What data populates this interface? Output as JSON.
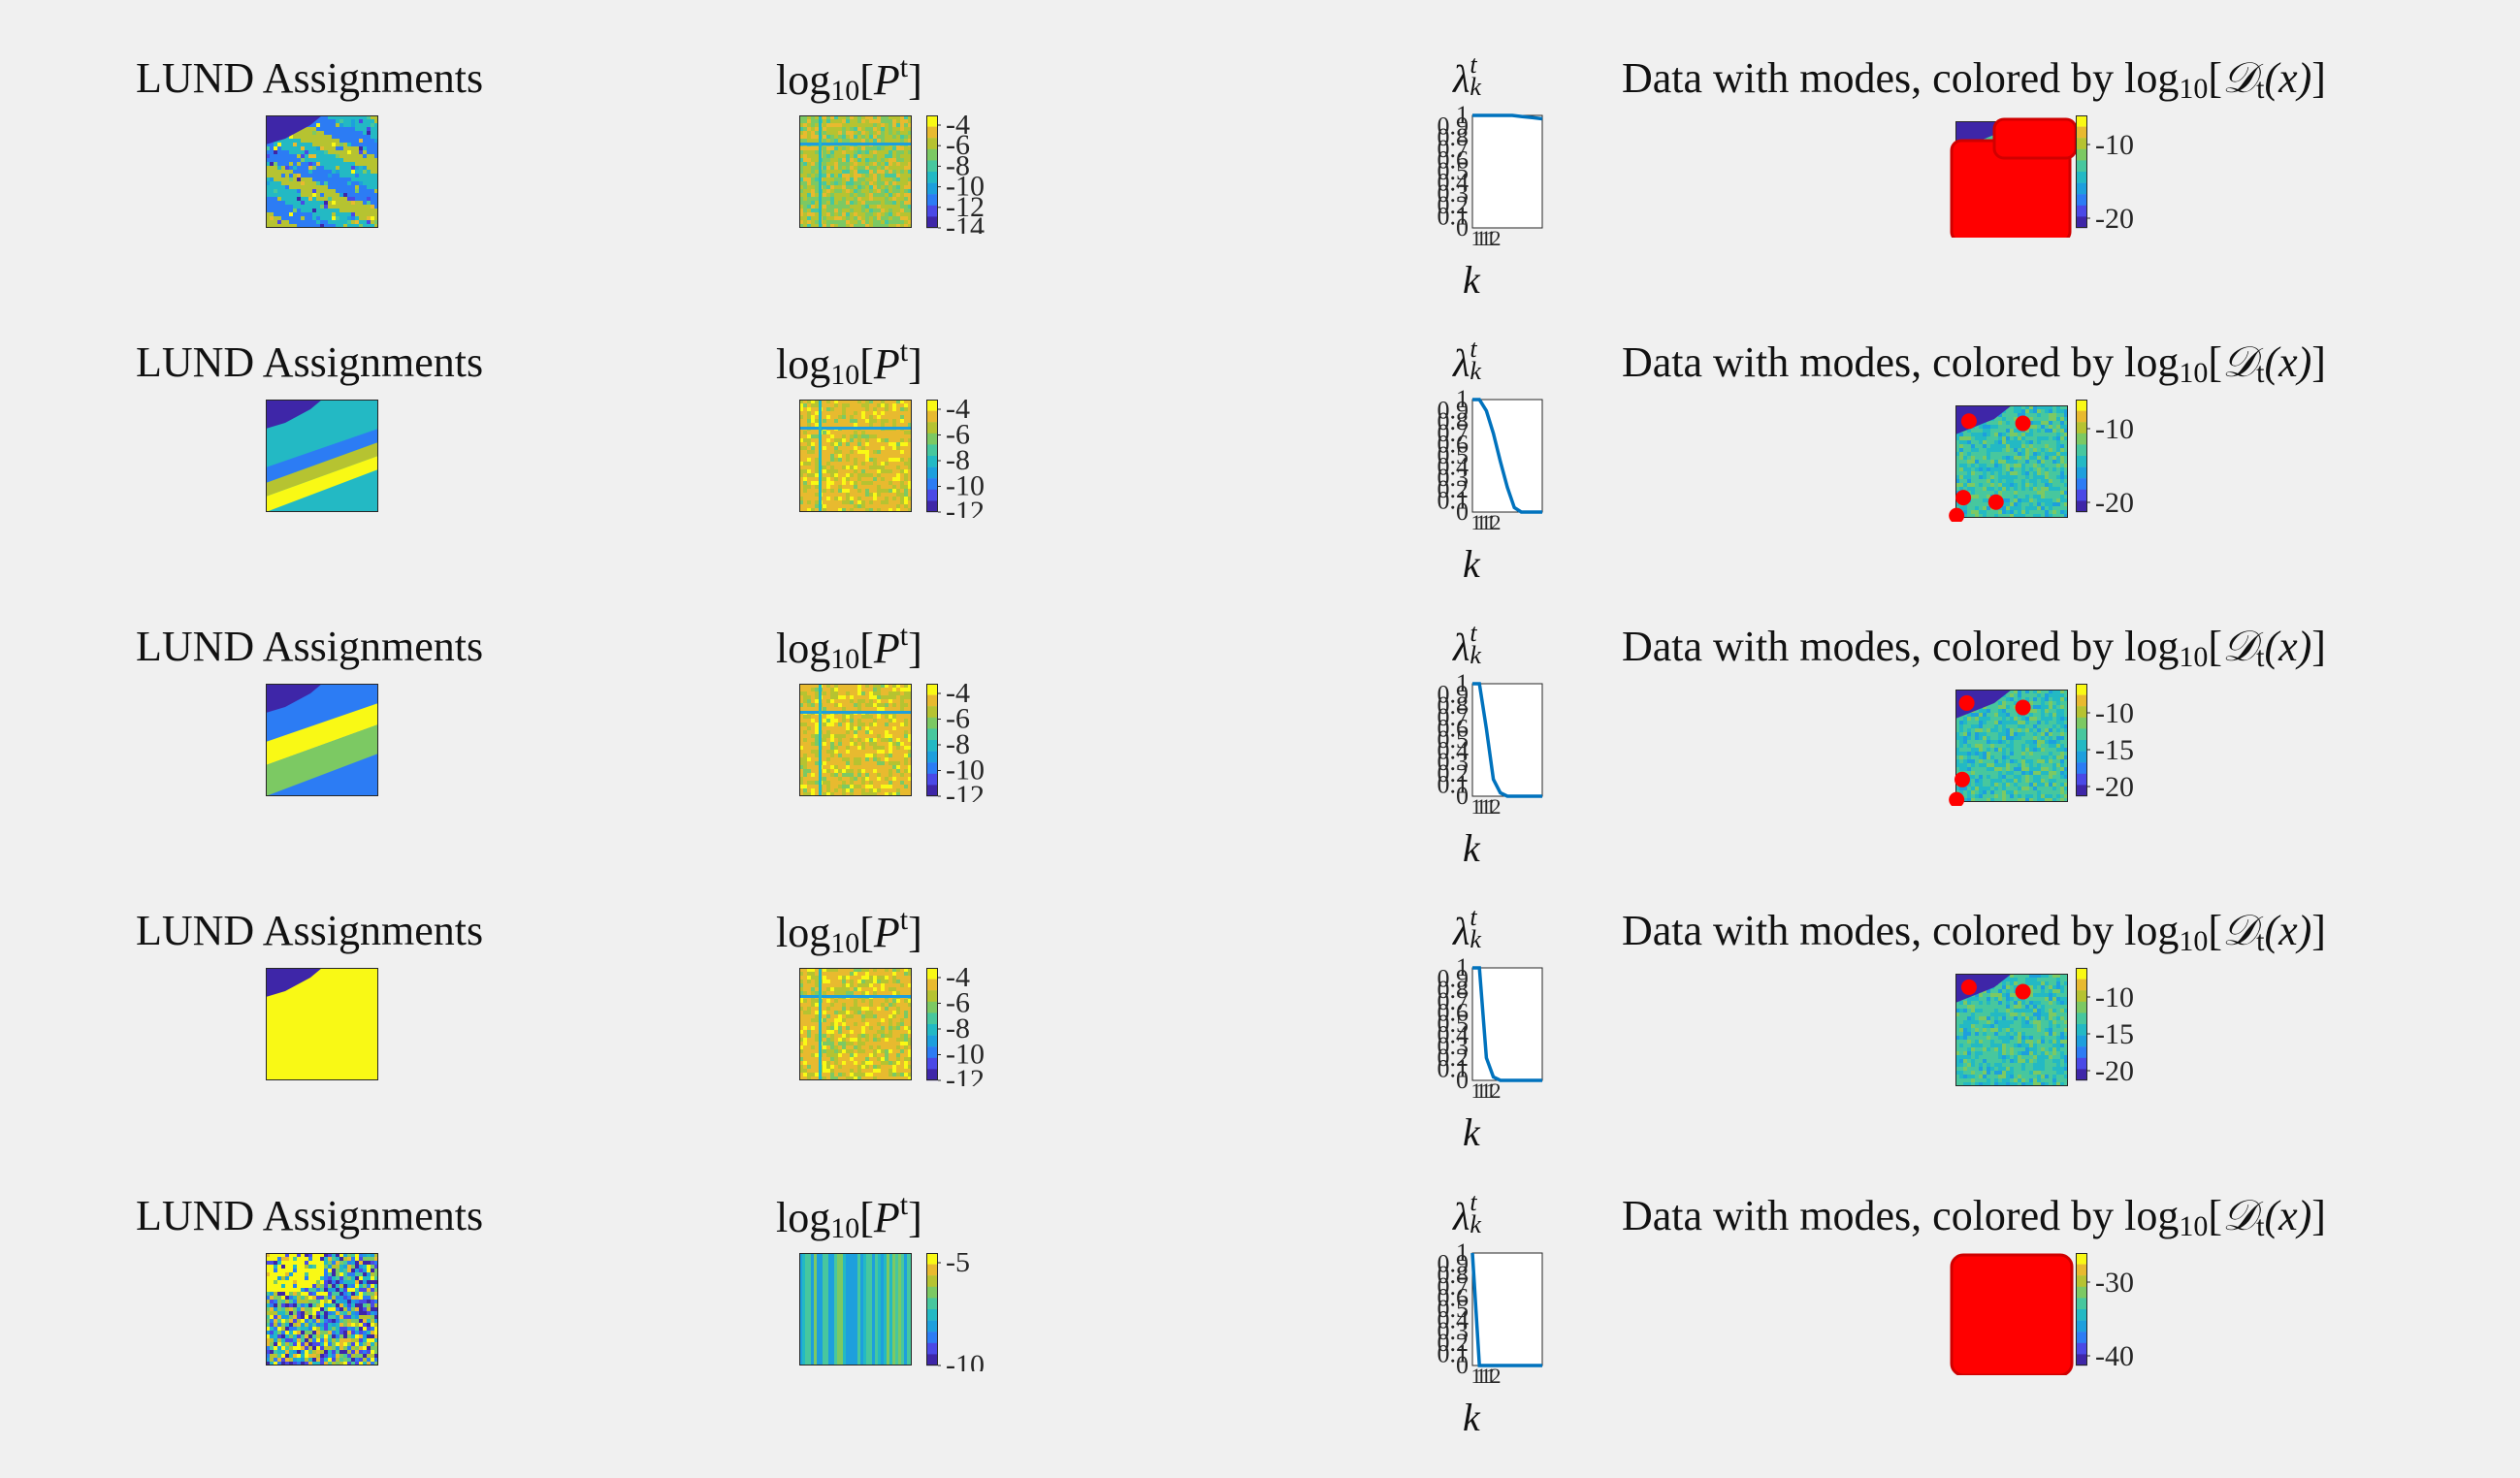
{
  "figure_rows": [
    {
      "assign_title": "LUND Assignments",
      "p_title": {
        "pre": "log",
        "sub": "10",
        "body": "P",
        "sup": "t"
      },
      "lam_title": {
        "main": "λ",
        "sup": "t",
        "sub": "k"
      },
      "data_title": {
        "pre": "Data with modes, colored by log",
        "sub": "10",
        "body": "𝒟",
        "tsub": "t",
        "arg": "(x)"
      },
      "p_ticks": [
        "-4",
        "-6",
        "-8",
        "-10",
        "-12",
        "-14"
      ],
      "d_ticks": [
        "-10",
        "-20"
      ],
      "assign_style": "multi-stripes",
      "data_modes_style": "big-blob",
      "lambda": [
        1,
        1,
        1,
        1,
        1,
        0.99,
        0.98,
        0.97
      ]
    },
    {
      "assign_title": "LUND Assignments",
      "p_title": {
        "pre": "log",
        "sub": "10",
        "body": "P",
        "sup": "t"
      },
      "lam_title": {
        "main": "λ",
        "sup": "t",
        "sub": "k"
      },
      "data_title": {
        "pre": "Data with modes, colored by log",
        "sub": "10",
        "body": "𝒟",
        "tsub": "t",
        "arg": "(x)"
      },
      "p_ticks": [
        "-4",
        "-6",
        "-8",
        "-10",
        "-12"
      ],
      "d_ticks": [
        "-10",
        "-20"
      ],
      "assign_style": "four-stripes",
      "data_modes_style": "points",
      "modes": [
        [
          0.12,
          0.14
        ],
        [
          0.6,
          0.16
        ],
        [
          0.07,
          0.82
        ],
        [
          0.36,
          0.86
        ],
        [
          0.01,
          0.98
        ]
      ],
      "lambda": [
        1,
        1,
        0.9,
        0.7,
        0.45,
        0.22,
        0.04,
        0,
        0,
        0,
        0
      ]
    },
    {
      "assign_title": "LUND Assignments",
      "p_title": {
        "pre": "log",
        "sub": "10",
        "body": "P",
        "sup": "t"
      },
      "lam_title": {
        "main": "λ",
        "sup": "t",
        "sub": "k"
      },
      "data_title": {
        "pre": "Data with modes, colored by log",
        "sub": "10",
        "body": "𝒟",
        "tsub": "t",
        "arg": "(x)"
      },
      "p_ticks": [
        "-4",
        "-6",
        "-8",
        "-10",
        "-12"
      ],
      "d_ticks": [
        "-10",
        "-15",
        "-20"
      ],
      "assign_style": "three-stripes",
      "data_modes_style": "points",
      "modes": [
        [
          0.1,
          0.12
        ],
        [
          0.6,
          0.16
        ],
        [
          0.06,
          0.8
        ],
        [
          0.01,
          0.98
        ]
      ],
      "lambda": [
        1,
        1,
        0.6,
        0.15,
        0.03,
        0,
        0,
        0,
        0,
        0,
        0
      ]
    },
    {
      "assign_title": "LUND Assignments",
      "p_title": {
        "pre": "log",
        "sub": "10",
        "body": "P",
        "sup": "t"
      },
      "lam_title": {
        "main": "λ",
        "sup": "t",
        "sub": "k"
      },
      "data_title": {
        "pre": "Data with modes, colored by log",
        "sub": "10",
        "body": "𝒟",
        "tsub": "t",
        "arg": "(x)"
      },
      "p_ticks": [
        "-4",
        "-6",
        "-8",
        "-10",
        "-12"
      ],
      "d_ticks": [
        "-10",
        "-15",
        "-20"
      ],
      "assign_style": "two-region",
      "data_modes_style": "points",
      "modes": [
        [
          0.12,
          0.12
        ],
        [
          0.6,
          0.16
        ]
      ],
      "lambda": [
        1,
        1,
        0.2,
        0.03,
        0,
        0,
        0,
        0,
        0,
        0,
        0
      ]
    },
    {
      "assign_title": "LUND Assignments",
      "p_title": {
        "pre": "log",
        "sub": "10",
        "body": "P",
        "sup": "t"
      },
      "lam_title": {
        "main": "λ",
        "sup": "t",
        "sub": "k"
      },
      "data_title": {
        "pre": "Data with modes, colored by log",
        "sub": "10",
        "body": "𝒟",
        "tsub": "t",
        "arg": "(x)"
      },
      "p_ticks": [
        "-5",
        "-10"
      ],
      "d_ticks": [
        "-30",
        "-40"
      ],
      "assign_style": "noise",
      "data_modes_style": "full-blob",
      "lambda": [
        1,
        0,
        0,
        0,
        0,
        0,
        0,
        0,
        0,
        0,
        0
      ]
    }
  ],
  "lambda_axis": {
    "ylabels": [
      "1",
      "0.9",
      "0.8",
      "0.7",
      "0.6",
      "0.5",
      "0.4",
      "0.3",
      "0.2",
      "0.1",
      "0"
    ],
    "xlabel": "k",
    "xlabels": [
      "1",
      "1",
      "1",
      "1",
      "2"
    ]
  },
  "colors": {
    "parula_dark": "#3e26a8",
    "parula_blue": "#2c7cf4",
    "parula_cyan": "#23b9c4",
    "parula_green": "#7cc963",
    "parula_yellow": "#f9f915",
    "line": "#0072bd",
    "mode": "#ff0000",
    "background": "#f0f0f0"
  },
  "chart_data": [
    {
      "type": "line",
      "title": "",
      "xlabel": "k",
      "ylabel": "",
      "ylim": [
        0,
        1
      ],
      "series": [
        {
          "values": [
            1,
            1,
            1,
            1,
            1,
            0.99,
            0.98,
            0.97
          ]
        }
      ]
    },
    {
      "type": "line",
      "title": "",
      "xlabel": "k",
      "ylabel": "",
      "ylim": [
        0,
        1
      ],
      "series": [
        {
          "values": [
            1,
            1,
            0.9,
            0.7,
            0.45,
            0.22,
            0.04,
            0,
            0,
            0,
            0
          ]
        }
      ]
    },
    {
      "type": "line",
      "title": "",
      "xlabel": "k",
      "ylabel": "",
      "ylim": [
        0,
        1
      ],
      "series": [
        {
          "values": [
            1,
            1,
            0.6,
            0.15,
            0.03,
            0,
            0,
            0,
            0,
            0,
            0
          ]
        }
      ]
    },
    {
      "type": "line",
      "title": "",
      "xlabel": "k",
      "ylabel": "",
      "ylim": [
        0,
        1
      ],
      "series": [
        {
          "values": [
            1,
            1,
            0.2,
            0.03,
            0,
            0,
            0,
            0,
            0,
            0,
            0
          ]
        }
      ]
    },
    {
      "type": "line",
      "title": "",
      "xlabel": "k",
      "ylabel": "",
      "ylim": [
        0,
        1
      ],
      "series": [
        {
          "values": [
            1,
            0,
            0,
            0,
            0,
            0,
            0,
            0,
            0,
            0,
            0
          ]
        }
      ]
    }
  ]
}
